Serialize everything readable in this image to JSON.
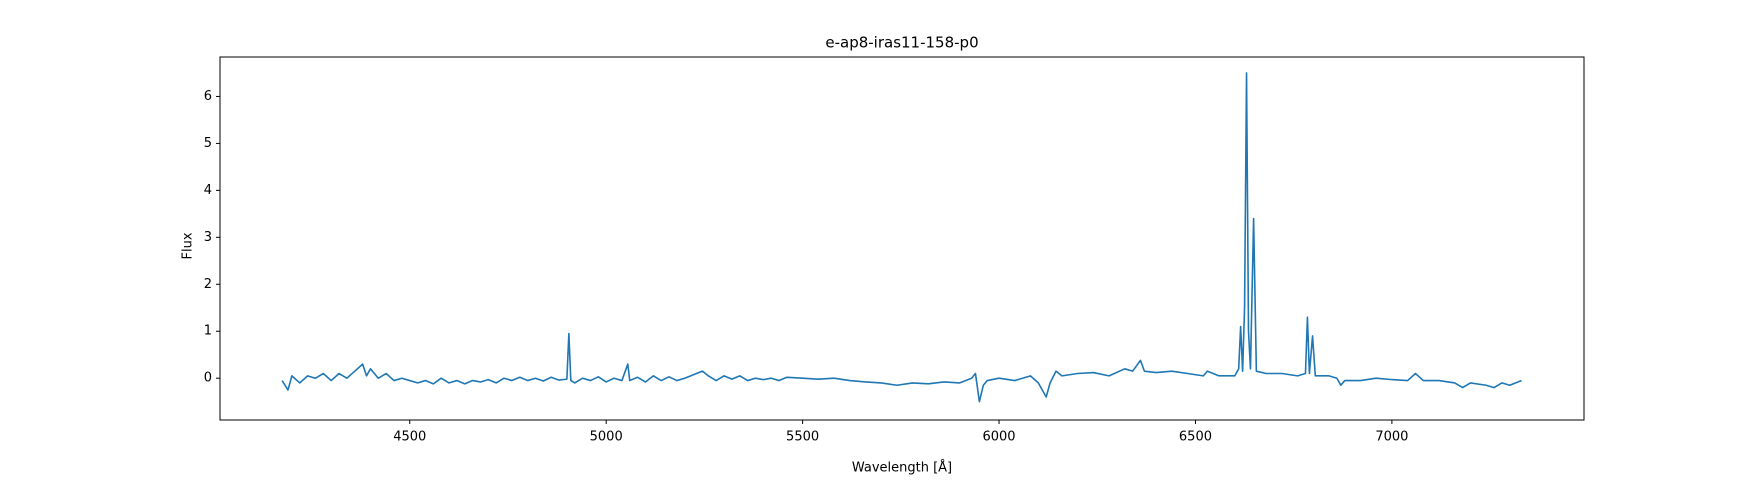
{
  "chart_data": {
    "type": "line",
    "title": "e-ap8-iras11-158-p0",
    "xlabel": "Wavelength [Å]",
    "ylabel": "Flux",
    "xlim": [
      4017,
      7489
    ],
    "ylim": [
      -0.89,
      6.84
    ],
    "xticks": [
      4500,
      5000,
      5500,
      6000,
      6500,
      7000
    ],
    "yticks": [
      0,
      1,
      2,
      3,
      4,
      5,
      6
    ],
    "series": [
      {
        "name": "Flux",
        "color": "#1f77b4",
        "x": [
          4175,
          4190,
          4200,
          4220,
          4240,
          4260,
          4280,
          4300,
          4320,
          4340,
          4360,
          4380,
          4390,
          4400,
          4420,
          4440,
          4460,
          4480,
          4500,
          4520,
          4540,
          4560,
          4580,
          4600,
          4620,
          4640,
          4660,
          4680,
          4700,
          4720,
          4740,
          4760,
          4780,
          4800,
          4820,
          4840,
          4860,
          4880,
          4900,
          4905,
          4910,
          4920,
          4940,
          4960,
          4980,
          5000,
          5020,
          5040,
          5055,
          5060,
          5080,
          5100,
          5120,
          5140,
          5160,
          5180,
          5200,
          5245,
          5260,
          5280,
          5300,
          5320,
          5340,
          5360,
          5380,
          5400,
          5420,
          5440,
          5460,
          5500,
          5540,
          5580,
          5620,
          5660,
          5700,
          5740,
          5780,
          5820,
          5860,
          5900,
          5930,
          5940,
          5945,
          5950,
          5960,
          5970,
          6000,
          6040,
          6080,
          6100,
          6120,
          6130,
          6145,
          6160,
          6200,
          6240,
          6280,
          6320,
          6340,
          6360,
          6370,
          6400,
          6440,
          6480,
          6520,
          6530,
          6560,
          6600,
          6610,
          6615,
          6620,
          6625,
          6630,
          6635,
          6640,
          6648,
          6655,
          6680,
          6720,
          6760,
          6780,
          6785,
          6790,
          6798,
          6805,
          6840,
          6860,
          6870,
          6880,
          6920,
          6960,
          7000,
          7040,
          7060,
          7080,
          7120,
          7160,
          7180,
          7200,
          7240,
          7260,
          7280,
          7300,
          7330
        ],
        "values": [
          -0.05,
          -0.25,
          0.05,
          -0.1,
          0.05,
          0.0,
          0.1,
          -0.05,
          0.1,
          0.0,
          0.15,
          0.3,
          0.05,
          0.2,
          0.0,
          0.1,
          -0.05,
          0.0,
          -0.05,
          -0.1,
          -0.05,
          -0.12,
          0.0,
          -0.1,
          -0.05,
          -0.12,
          -0.05,
          -0.08,
          -0.03,
          -0.1,
          0.0,
          -0.05,
          0.02,
          -0.05,
          0.0,
          -0.06,
          0.02,
          -0.04,
          -0.02,
          0.95,
          -0.05,
          -0.1,
          0.0,
          -0.05,
          0.03,
          -0.08,
          0.0,
          -0.05,
          0.3,
          -0.05,
          0.02,
          -0.08,
          0.05,
          -0.05,
          0.03,
          -0.05,
          0.0,
          0.15,
          0.05,
          -0.05,
          0.05,
          -0.02,
          0.05,
          -0.05,
          0.0,
          -0.03,
          0.0,
          -0.05,
          0.02,
          0.0,
          -0.02,
          0.0,
          -0.05,
          -0.08,
          -0.1,
          -0.15,
          -0.1,
          -0.12,
          -0.08,
          -0.1,
          0.0,
          0.1,
          -0.2,
          -0.5,
          -0.15,
          -0.05,
          0.0,
          -0.05,
          0.05,
          -0.1,
          -0.4,
          -0.1,
          0.15,
          0.05,
          0.1,
          0.12,
          0.05,
          0.2,
          0.15,
          0.38,
          0.15,
          0.12,
          0.15,
          0.1,
          0.05,
          0.15,
          0.05,
          0.05,
          0.2,
          1.1,
          0.15,
          1.5,
          6.5,
          1.0,
          0.2,
          3.4,
          0.15,
          0.1,
          0.1,
          0.05,
          0.1,
          1.3,
          0.1,
          0.9,
          0.05,
          0.05,
          0.0,
          -0.15,
          -0.05,
          -0.05,
          0.0,
          -0.03,
          -0.05,
          0.1,
          -0.05,
          -0.05,
          -0.1,
          -0.2,
          -0.1,
          -0.15,
          -0.2,
          -0.1,
          -0.15,
          -0.05
        ]
      }
    ]
  }
}
